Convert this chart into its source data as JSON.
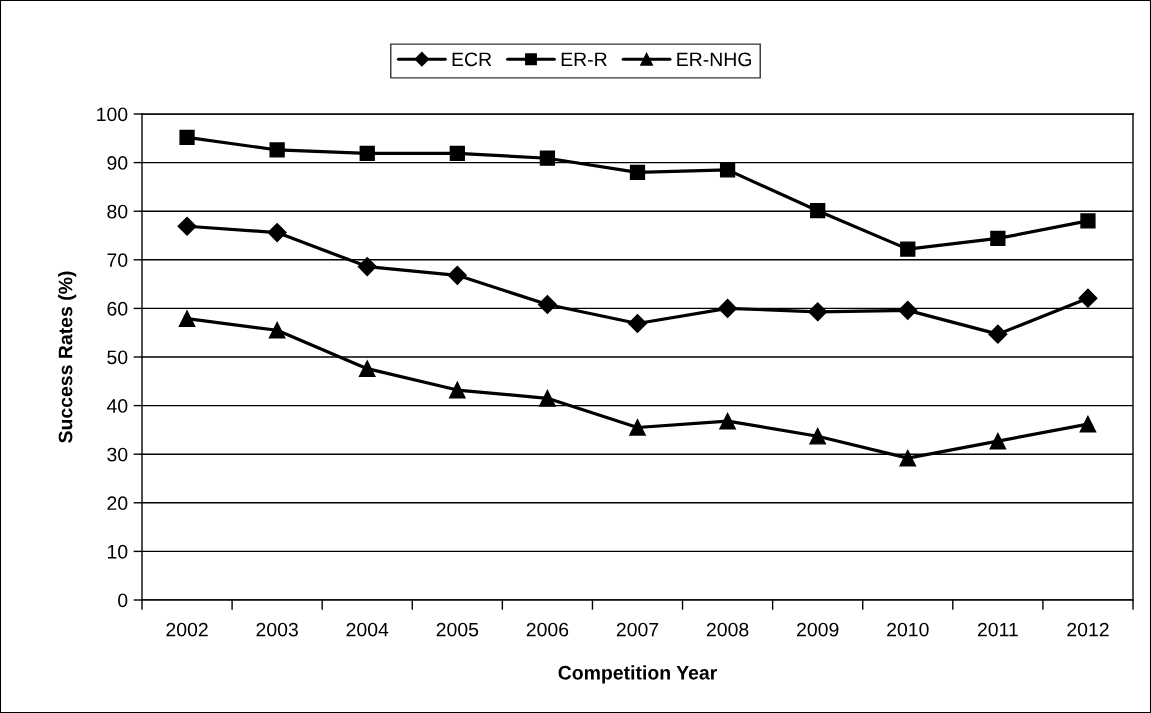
{
  "chart_data": {
    "type": "line",
    "xlabel": "Competition Year",
    "ylabel": "Success Rates (%)",
    "categories": [
      "2002",
      "2003",
      "2004",
      "2005",
      "2006",
      "2007",
      "2008",
      "2009",
      "2010",
      "2011",
      "2012"
    ],
    "series": [
      {
        "name": "ECR",
        "color": "#000000",
        "marker": "diamond",
        "values": [
          76.9,
          75.6,
          68.6,
          66.8,
          60.8,
          56.9,
          60.0,
          59.3,
          59.6,
          54.7,
          62.1
        ]
      },
      {
        "name": "ER-R",
        "color": "#000000",
        "marker": "square",
        "values": [
          95.2,
          92.6,
          91.9,
          91.9,
          90.9,
          88.0,
          88.5,
          80.1,
          72.2,
          74.4,
          78.0
        ]
      },
      {
        "name": "ER-NHG",
        "color": "#000000",
        "marker": "triangle",
        "values": [
          57.9,
          55.5,
          47.6,
          43.2,
          41.5,
          35.5,
          36.8,
          33.7,
          29.2,
          32.7,
          36.2
        ]
      }
    ],
    "ylim": [
      0,
      100
    ],
    "yticks": [
      0,
      10,
      20,
      30,
      40,
      50,
      60,
      70,
      80,
      90,
      100
    ],
    "grid": "y",
    "legend": "top",
    "line_style": "solid"
  }
}
